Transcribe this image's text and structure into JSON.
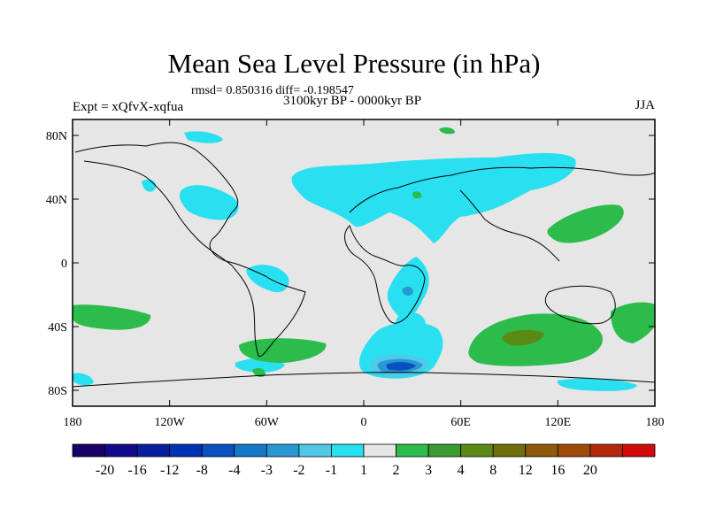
{
  "header": {
    "title": "Mean Sea Level Pressure (in hPa)",
    "stats": "rmsd= 0.850316 diff= -0.198547",
    "experiment": "Expt = xQfvX-xqfua",
    "period": "3100kyr BP - 0000kyr BP",
    "season": "JJA"
  },
  "axes": {
    "lat_ticks": [
      {
        "label": "80N",
        "value": 80
      },
      {
        "label": "40N",
        "value": 40
      },
      {
        "label": "0",
        "value": 0
      },
      {
        "label": "40S",
        "value": -40
      },
      {
        "label": "80S",
        "value": -80
      }
    ],
    "lon_ticks": [
      {
        "label": "180",
        "value": -180
      },
      {
        "label": "120W",
        "value": -120
      },
      {
        "label": "60W",
        "value": -60
      },
      {
        "label": "0",
        "value": 0
      },
      {
        "label": "60E",
        "value": 60
      },
      {
        "label": "120E",
        "value": 120
      },
      {
        "label": "180",
        "value": 180
      }
    ]
  },
  "colorbar": {
    "colors": [
      "#1a0066",
      "#120a8c",
      "#0a1ea0",
      "#0032b4",
      "#0a50be",
      "#1478c8",
      "#2898d2",
      "#50c8e6",
      "#28e0f0",
      "#e6e6e6",
      "#2cbc4c",
      "#3c9c34",
      "#5a8a14",
      "#6e6e0a",
      "#8c5a0a",
      "#a04a0a",
      "#b4280a",
      "#d20a0a"
    ],
    "labels": [
      "-20",
      "-16",
      "-12",
      "-8",
      "-4",
      "-3",
      "-2",
      "-1",
      "1",
      "2",
      "3",
      "4",
      "8",
      "12",
      "16",
      "20"
    ]
  },
  "chart_data": {
    "type": "heatmap",
    "title": "Mean Sea Level Pressure (in hPa)",
    "variable": "MSLP difference",
    "units": "hPa",
    "levels": [
      -20,
      -16,
      -12,
      -8,
      -4,
      -3,
      -2,
      -1,
      1,
      2,
      3,
      4,
      8,
      12,
      16,
      20
    ],
    "xlim": [
      -180,
      180
    ],
    "ylim": [
      -90,
      90
    ],
    "regions": [
      {
        "name": "north-atlantic-eurasia-low",
        "lon": [
          -40,
          140
        ],
        "lat": [
          25,
          65
        ],
        "value_range": [
          -2,
          -1
        ]
      },
      {
        "name": "south-atlantic-low",
        "lon": [
          0,
          45
        ],
        "lat": [
          -90,
          -20
        ],
        "value_range": [
          -12,
          -1
        ]
      },
      {
        "name": "south-indian-high",
        "lon": [
          60,
          140
        ],
        "lat": [
          -60,
          -30
        ],
        "value_range": [
          1,
          3
        ]
      },
      {
        "name": "north-pacific-west-high",
        "lon": [
          120,
          160
        ],
        "lat": [
          25,
          40
        ],
        "value_range": [
          1,
          2
        ]
      },
      {
        "name": "south-pacific-high",
        "lon": [
          -180,
          -140
        ],
        "lat": [
          -50,
          -35
        ],
        "value_range": [
          1,
          2
        ]
      }
    ]
  },
  "colors": {
    "land_neutral": "#e6e6e6",
    "negative_light": "#28e0f0",
    "positive_light": "#2cbc4c"
  }
}
